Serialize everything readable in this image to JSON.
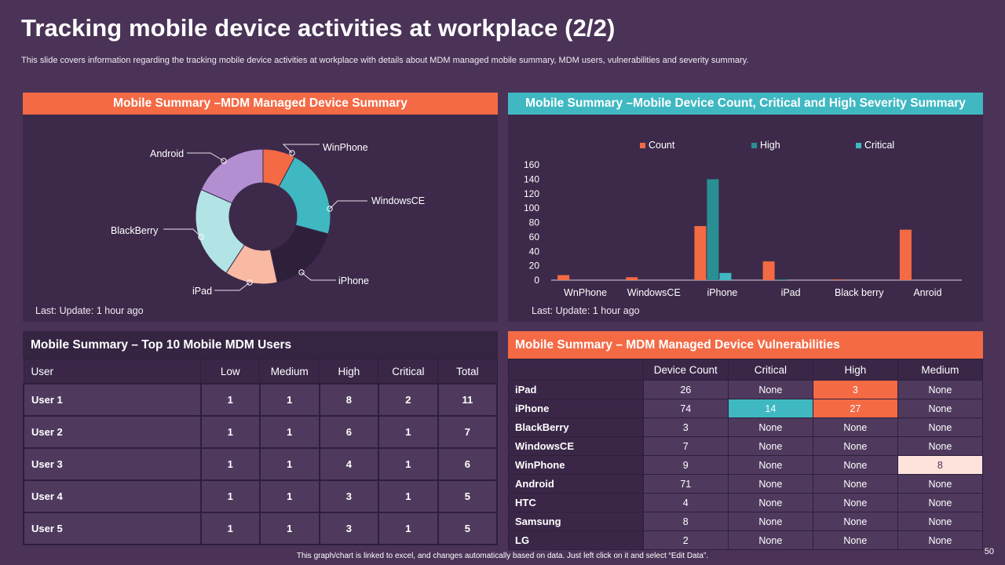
{
  "title": "Tracking mobile device activities at workplace (2/2)",
  "subtitle": "This slide covers information regarding the tracking mobile device activities at workplace with details about MDM managed mobile summary, MDM users, vulnerabilities and severity summary.",
  "colors": {
    "orange": "#f36a45",
    "teal": "#3fb8c2",
    "darkteal": "#2a8f93",
    "background": "#4a3357",
    "panel": "#3d2a4a"
  },
  "panels": {
    "donut_title": "Mobile Summary –MDM Managed Device Summary",
    "bar_title": "Mobile Summary –Mobile Device Count, Critical and High Severity Summary",
    "users_title": "Mobile Summary – Top 10 Mobile MDM Users",
    "vuln_title": "Mobile Summary – MDM Managed Device Vulnerabilities",
    "last_update": "Last: Update:  1 hour ago"
  },
  "chart_data": [
    {
      "type": "pie",
      "title": "Mobile Summary –MDM Managed Device Summary",
      "donut": true,
      "categories": [
        "WinPhone",
        "WindowsCE",
        "iPhone",
        "iPad",
        "BlackBerry",
        "Android"
      ],
      "values": [
        8,
        22,
        18,
        13,
        23,
        19
      ],
      "colors": [
        "#f36a45",
        "#3fb8c2",
        "#2e1f3a",
        "#f9b9a3",
        "#b2e4e6",
        "#b38fd1"
      ]
    },
    {
      "type": "bar",
      "title": "Mobile Summary –Mobile Device Count, Critical and High Severity Summary",
      "categories": [
        "WnPhone",
        "WindowsCE",
        "iPhone",
        "iPad",
        "Black berry",
        "Anroid"
      ],
      "series": [
        {
          "name": "Count",
          "color": "#f36a45",
          "values": [
            7,
            4,
            75,
            26,
            1,
            70
          ]
        },
        {
          "name": "High",
          "color": "#2a8f93",
          "values": [
            0,
            0,
            140,
            1,
            0,
            0
          ]
        },
        {
          "name": "Critical",
          "color": "#3fb8c2",
          "values": [
            0,
            0,
            10,
            0,
            0,
            0
          ]
        }
      ],
      "yticks": [
        "0",
        "20",
        "40",
        "60",
        "80",
        "100",
        "120",
        "140",
        "160"
      ],
      "ylim": [
        0,
        160
      ],
      "legend": "top"
    }
  ],
  "users_table": {
    "headers": [
      "User",
      "Low",
      "Medium",
      "High",
      "Critical",
      "Total"
    ],
    "rows": [
      [
        "User 1",
        "1",
        "1",
        "8",
        "2",
        "11"
      ],
      [
        "User 2",
        "1",
        "1",
        "6",
        "1",
        "7"
      ],
      [
        "User 3",
        "1",
        "1",
        "4",
        "1",
        "6"
      ],
      [
        "User 4",
        "1",
        "1",
        "3",
        "1",
        "5"
      ],
      [
        "User 5",
        "1",
        "1",
        "3",
        "1",
        "5"
      ]
    ]
  },
  "vuln_table": {
    "headers": [
      "",
      "Device Count",
      "Critical",
      "High",
      "Medium"
    ],
    "rows": [
      [
        "iPad",
        "26",
        "None",
        "3",
        "None"
      ],
      [
        "iPhone",
        "74",
        "14",
        "27",
        "None"
      ],
      [
        "BlackBerry",
        "3",
        "None",
        "None",
        "None"
      ],
      [
        "WindowsCE",
        "7",
        "None",
        "None",
        "None"
      ],
      [
        "WinPhone",
        "9",
        "None",
        "None",
        "8"
      ],
      [
        "Android",
        "71",
        "None",
        "None",
        "None"
      ],
      [
        "HTC",
        "4",
        "None",
        "None",
        "None"
      ],
      [
        "Samsung",
        "8",
        "None",
        "None",
        "None"
      ],
      [
        "LG",
        "2",
        "None",
        "None",
        "None"
      ]
    ],
    "highlights": {
      "0-3": "orange",
      "1-2": "teal",
      "1-3": "orange",
      "4-4": "pink"
    }
  },
  "footer": "This graph/chart is linked to excel, and changes automatically based on data. Just left click on it and select “Edit Data”.",
  "page_number": "50"
}
